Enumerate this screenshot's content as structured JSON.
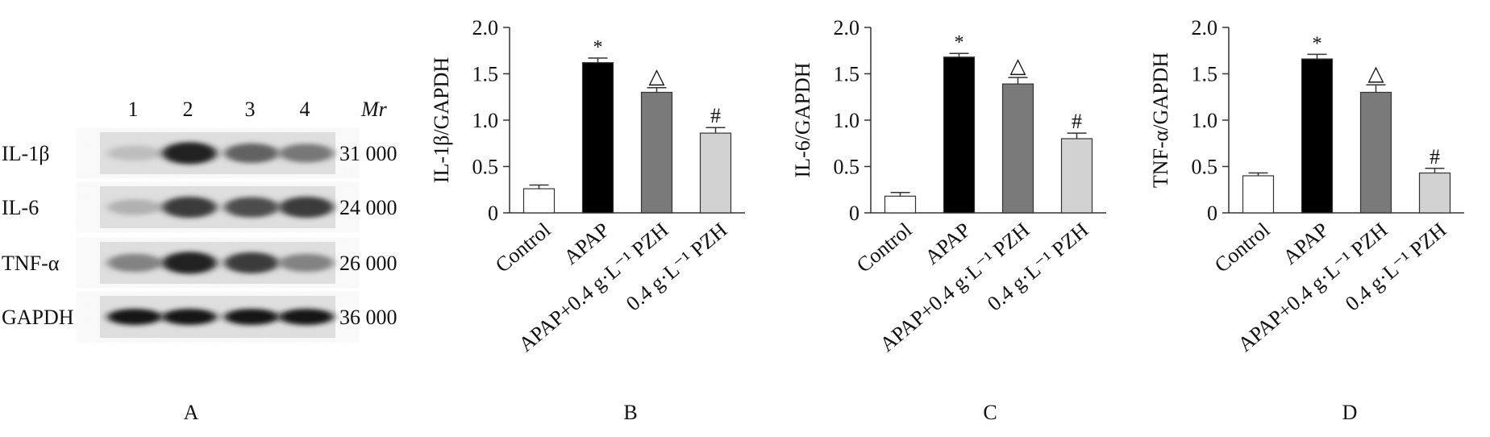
{
  "blot": {
    "lane_labels": [
      "1",
      "2",
      "3",
      "4"
    ],
    "mr_label": "Mr",
    "rows": [
      {
        "protein": "IL-1β",
        "mr": "31 000",
        "intensity": [
          0.22,
          0.95,
          0.7,
          0.6
        ]
      },
      {
        "protein": "IL-6",
        "mr": "24 000",
        "intensity": [
          0.3,
          0.85,
          0.78,
          0.85
        ]
      },
      {
        "protein": "TNF-α",
        "mr": "26 000",
        "intensity": [
          0.55,
          0.95,
          0.85,
          0.55
        ]
      },
      {
        "protein": "GAPDH",
        "mr": "36 000",
        "intensity": [
          1.0,
          1.0,
          1.0,
          1.0
        ]
      }
    ],
    "panel_letter": "A"
  },
  "chart_data": [
    {
      "type": "bar",
      "panel_letter": "B",
      "ylabel": "IL-1β/GAPDH",
      "categories": [
        "Control",
        "APAP",
        "APAP+0.4 g·L⁻¹ PZH",
        "0.4 g·L⁻¹ PZH"
      ],
      "values": [
        0.26,
        1.62,
        1.3,
        0.86
      ],
      "errors": [
        0.04,
        0.05,
        0.05,
        0.06
      ],
      "annotations": [
        "",
        "*",
        "△",
        "#"
      ],
      "ylim": [
        0,
        2.0
      ],
      "yticks": [
        0,
        0.5,
        1.0,
        1.5,
        2.0
      ],
      "ytick_labels": [
        "0",
        "0.5",
        "1.0",
        "1.5",
        "2.0"
      ],
      "bar_colors": [
        "#ffffff",
        "#000000",
        "#7a7a7a",
        "#d2d2d2"
      ]
    },
    {
      "type": "bar",
      "panel_letter": "C",
      "ylabel": "IL-6/GAPDH",
      "categories": [
        "Control",
        "APAP",
        "APAP+0.4 g·L⁻¹ PZH",
        "0.4 g·L⁻¹ PZH"
      ],
      "values": [
        0.18,
        1.68,
        1.39,
        0.8
      ],
      "errors": [
        0.04,
        0.04,
        0.07,
        0.06
      ],
      "annotations": [
        "",
        "*",
        "△",
        "#"
      ],
      "ylim": [
        0,
        2.0
      ],
      "yticks": [
        0,
        0.5,
        1.0,
        1.5,
        2.0
      ],
      "ytick_labels": [
        "0",
        "0.5",
        "1.0",
        "1.5",
        "2.0"
      ],
      "bar_colors": [
        "#ffffff",
        "#000000",
        "#7a7a7a",
        "#d2d2d2"
      ]
    },
    {
      "type": "bar",
      "panel_letter": "D",
      "ylabel": "TNF-α/GAPDH",
      "categories": [
        "Control",
        "APAP",
        "APAP+0.4 g·L⁻¹ PZH",
        "0.4 g·L⁻¹ PZH"
      ],
      "values": [
        0.4,
        1.66,
        1.3,
        0.43
      ],
      "errors": [
        0.03,
        0.05,
        0.08,
        0.05
      ],
      "annotations": [
        "",
        "*",
        "△",
        "#"
      ],
      "ylim": [
        0,
        2.0
      ],
      "yticks": [
        0,
        0.5,
        1.0,
        1.5,
        2.0
      ],
      "ytick_labels": [
        "0",
        "0.5",
        "1.0",
        "1.5",
        "2.0"
      ],
      "bar_colors": [
        "#ffffff",
        "#000000",
        "#7a7a7a",
        "#d2d2d2"
      ]
    }
  ]
}
